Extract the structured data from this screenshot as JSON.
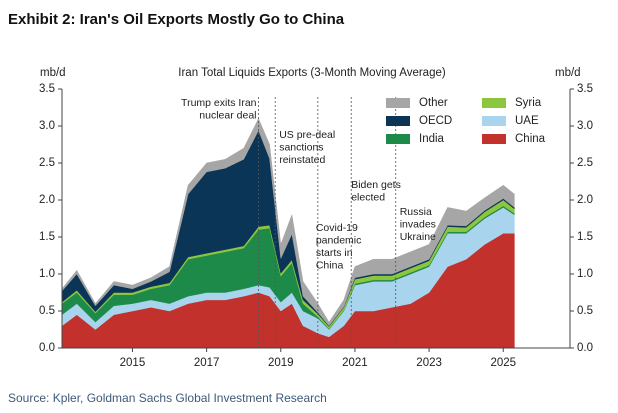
{
  "chart_data": {
    "type": "stacked_area",
    "title": "Exhibit 2: Iran's Oil Exports Mostly Go to China",
    "subtitle": "Iran Total Liquids Exports (3-Month Moving Average)",
    "y_label": "mb/d",
    "y2_label": "mb/d",
    "source": "Source: Kpler, Goldman Sachs Global Investment Research",
    "x": [
      2013.1,
      2013.5,
      2014.0,
      2014.5,
      2015.0,
      2015.5,
      2016.0,
      2016.5,
      2017.0,
      2017.5,
      2018.0,
      2018.4,
      2018.7,
      2019.0,
      2019.3,
      2019.6,
      2020.0,
      2020.3,
      2020.7,
      2021.0,
      2021.5,
      2022.0,
      2022.5,
      2023.0,
      2023.5,
      2024.0,
      2024.5,
      2025.0,
      2025.3
    ],
    "series": [
      {
        "name": "China",
        "color": "#c3312d",
        "values": [
          0.3,
          0.45,
          0.25,
          0.45,
          0.5,
          0.55,
          0.5,
          0.6,
          0.65,
          0.65,
          0.7,
          0.75,
          0.7,
          0.5,
          0.6,
          0.3,
          0.2,
          0.15,
          0.3,
          0.5,
          0.5,
          0.55,
          0.6,
          0.75,
          1.1,
          1.2,
          1.4,
          1.55,
          1.55
        ]
      },
      {
        "name": "UAE",
        "color": "#a9d4ee",
        "values": [
          0.15,
          0.15,
          0.1,
          0.12,
          0.1,
          0.1,
          0.1,
          0.1,
          0.1,
          0.1,
          0.1,
          0.1,
          0.12,
          0.12,
          0.15,
          0.2,
          0.2,
          0.1,
          0.2,
          0.35,
          0.4,
          0.35,
          0.4,
          0.35,
          0.45,
          0.35,
          0.35,
          0.35,
          0.25
        ]
      },
      {
        "name": "India",
        "color": "#1e8a4a",
        "values": [
          0.15,
          0.15,
          0.12,
          0.15,
          0.12,
          0.15,
          0.25,
          0.5,
          0.5,
          0.55,
          0.55,
          0.75,
          0.8,
          0.35,
          0.4,
          0.1,
          0.02,
          0.01,
          0.01,
          0.02,
          0.02,
          0.02,
          0.02,
          0.02,
          0.02,
          0.02,
          0.02,
          0.02,
          0.02
        ]
      },
      {
        "name": "Syria",
        "color": "#8cc63f",
        "values": [
          0.02,
          0.03,
          0.02,
          0.03,
          0.03,
          0.03,
          0.03,
          0.03,
          0.03,
          0.03,
          0.03,
          0.04,
          0.04,
          0.04,
          0.04,
          0.05,
          0.04,
          0.03,
          0.04,
          0.06,
          0.06,
          0.06,
          0.06,
          0.06,
          0.07,
          0.06,
          0.07,
          0.08,
          0.06
        ]
      },
      {
        "name": "OECD",
        "color": "#0b3556",
        "values": [
          0.15,
          0.22,
          0.08,
          0.1,
          0.05,
          0.07,
          0.15,
          0.85,
          1.1,
          1.1,
          1.17,
          1.3,
          0.9,
          0.2,
          0.35,
          0.05,
          0.02,
          0.01,
          0.01,
          0.02,
          0.02,
          0.02,
          0.02,
          0.02,
          0.02,
          0.02,
          0.02,
          0.02,
          0.02
        ]
      },
      {
        "name": "Other",
        "color": "#a6a6a6",
        "values": [
          0.03,
          0.05,
          0.03,
          0.05,
          0.05,
          0.05,
          0.07,
          0.12,
          0.12,
          0.12,
          0.15,
          0.16,
          0.19,
          0.19,
          0.26,
          0.2,
          0.12,
          0.05,
          0.09,
          0.15,
          0.2,
          0.2,
          0.2,
          0.2,
          0.24,
          0.2,
          0.17,
          0.18,
          0.18
        ]
      }
    ],
    "xlim": [
      2013.1,
      2026.8
    ],
    "xticks": [
      2015,
      2017,
      2019,
      2021,
      2023,
      2025
    ],
    "ylim": [
      0,
      3.5
    ],
    "yticks": [
      {
        "value": 0,
        "label": "0.0"
      },
      0.5,
      {
        "value": 1,
        "label": "1.0"
      },
      1.5,
      {
        "value": 2,
        "label": "2.0"
      },
      2.5,
      {
        "value": 3,
        "label": "3.0"
      },
      3.5
    ],
    "y2lim": [
      0,
      3.5
    ],
    "y2ticks": [
      {
        "value": 0,
        "label": "0.0"
      },
      0.5,
      {
        "value": 1,
        "label": "1.0"
      },
      1.5,
      {
        "value": 2,
        "label": "2.0"
      },
      2.5,
      {
        "value": 3,
        "label": "3.0"
      },
      3.5
    ],
    "legend": "upper right",
    "annotations": [
      {
        "x": 2018.4,
        "text": [
          "Trump exits Iran",
          "nuclear deal"
        ]
      },
      {
        "x": 2018.85,
        "text": [
          "US pre-deal",
          "sanctions",
          "reinstated"
        ]
      },
      {
        "x": 2020.0,
        "text": [
          "Covid-19",
          "pandemic",
          "starts in",
          "China"
        ]
      },
      {
        "x": 2020.9,
        "text": [
          "Biden gets",
          "elected"
        ]
      },
      {
        "x": 2022.1,
        "text": [
          "Russia",
          "invades",
          "Ukraine"
        ]
      }
    ]
  }
}
